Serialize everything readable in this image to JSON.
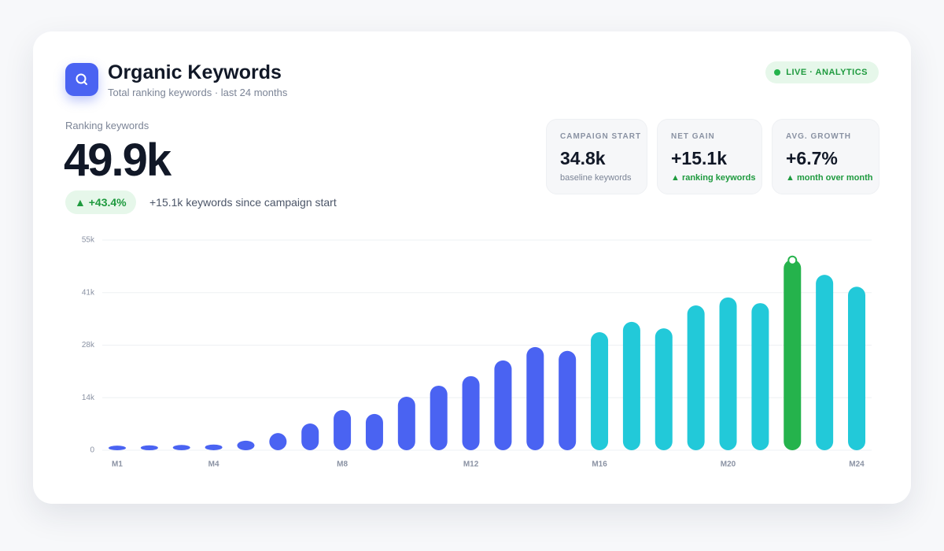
{
  "header": {
    "title": "Organic Keywords",
    "subtitle": "Total ranking keywords · last 24 months",
    "badge": "LIVE · ANALYTICS"
  },
  "summary": {
    "label": "Ranking keywords",
    "value": "49.9k",
    "change": "▲ +43.4%",
    "note": "+15.1k keywords since campaign start"
  },
  "stats": [
    {
      "label": "CAMPAIGN START",
      "value": "34.8k",
      "note": "baseline keywords"
    },
    {
      "label": "NET GAIN",
      "value": "+15.1k",
      "note": "▲ ranking keywords"
    },
    {
      "label": "AVG. GROWTH",
      "value": "+6.7%",
      "note": "▲ month over month"
    }
  ],
  "chart_data": {
    "type": "bar",
    "categories": [
      "M1",
      null,
      null,
      "M4",
      null,
      null,
      null,
      "M8",
      null,
      null,
      null,
      "M12",
      null,
      null,
      null,
      "M16",
      null,
      null,
      null,
      "M20",
      null,
      null,
      null,
      "M24"
    ],
    "values": [
      1200,
      1300,
      1400,
      1500,
      2500,
      4500,
      7000,
      10500,
      9500,
      14000,
      16900,
      19400,
      23500,
      27000,
      26000,
      30900,
      33600,
      31900,
      37900,
      40000,
      38500,
      49900,
      45900,
      42800
    ],
    "colors": [
      "#4a63f2",
      "#4a63f2",
      "#4a63f2",
      "#4a63f2",
      "#4a63f2",
      "#4a63f2",
      "#4a63f2",
      "#4a63f2",
      "#4a63f2",
      "#4a63f2",
      "#4a63f2",
      "#4a63f2",
      "#4a63f2",
      "#4a63f2",
      "#4a63f2",
      "#22c9d9",
      "#22c9d9",
      "#22c9d9",
      "#22c9d9",
      "#22c9d9",
      "#22c9d9",
      "#25b34c",
      "#22c9d9",
      "#22c9d9"
    ],
    "highlight_index": 21,
    "ylim": [
      0,
      55000
    ],
    "yticks": [
      0,
      {
        "value": 13750,
        "label": "14k"
      },
      {
        "value": 27500,
        "label": "28k"
      },
      {
        "value": 41250,
        "label": "41k"
      },
      {
        "value": 55000,
        "label": "55k"
      }
    ],
    "grid": true
  }
}
